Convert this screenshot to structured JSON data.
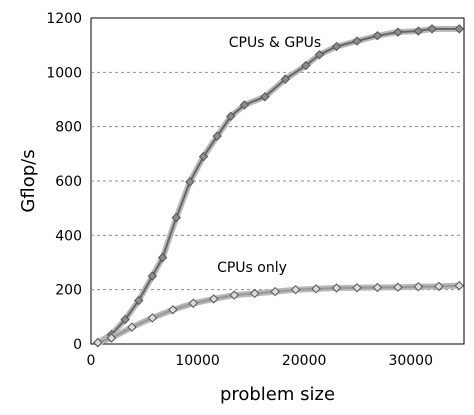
{
  "chart_data": {
    "type": "line",
    "xlabel": "problem size",
    "ylabel": "Gflop/s",
    "xlim": [
      0,
      35000
    ],
    "ylim": [
      0,
      1200
    ],
    "x_ticks": [
      0,
      10000,
      20000,
      30000
    ],
    "x_tick_labels": [
      "0",
      "10000",
      "20000",
      "30000"
    ],
    "y_ticks": [
      0,
      200,
      400,
      600,
      800,
      1000,
      1200
    ],
    "y_tick_labels": [
      "0",
      "200",
      "400",
      "600",
      "800",
      "1000",
      "1200"
    ],
    "grid": "horizontal dashed",
    "annotations": [
      {
        "text": "CPUs & GPUs",
        "series_index": 0
      },
      {
        "text": "CPUs only",
        "series_index": 1
      }
    ],
    "series": [
      {
        "x": [
          640,
          1920,
          3200,
          4480,
          5760,
          6720,
          8000,
          9280,
          10560,
          11840,
          13120,
          14400,
          16320,
          18240,
          20160,
          21440,
          23040,
          24960,
          26880,
          28800,
          30720,
          32000,
          34560
        ],
        "values": [
          5,
          35,
          90,
          160,
          250,
          318,
          465,
          597,
          690,
          765,
          838,
          880,
          910,
          975,
          1025,
          1065,
          1095,
          1115,
          1135,
          1148,
          1152,
          1160,
          1160
        ],
        "color": "#666666",
        "marker_fill": "#8c8c8c"
      },
      {
        "x": [
          640,
          1920,
          3840,
          5760,
          7680,
          9600,
          11520,
          13440,
          15360,
          17280,
          19200,
          21120,
          23040,
          24960,
          26880,
          28800,
          30720,
          32640,
          34560
        ],
        "values": [
          5,
          22,
          62,
          96,
          126,
          150,
          166,
          180,
          186,
          193,
          200,
          203,
          206,
          207,
          208,
          209,
          211,
          212,
          215
        ],
        "color": "#999999",
        "marker_fill": "#dcdcdc"
      }
    ]
  }
}
